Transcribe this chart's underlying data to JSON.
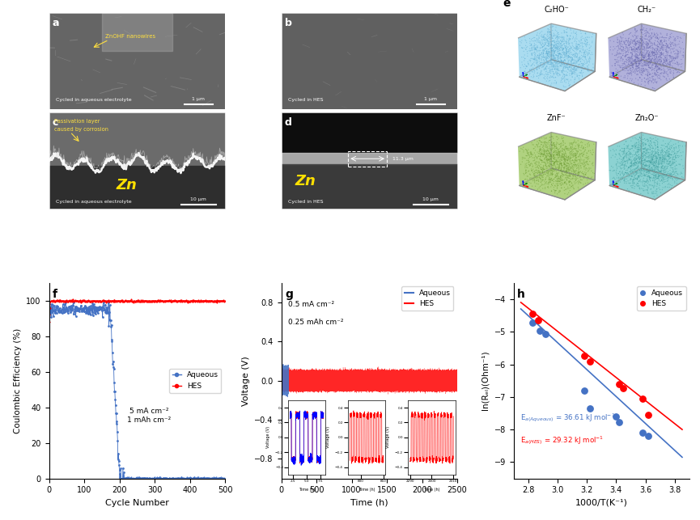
{
  "fig_width": 8.65,
  "fig_height": 6.43,
  "panel_f": {
    "xlabel": "Cycle Number",
    "ylabel": "Coulombic Efficiency (%)",
    "xlim": [
      0,
      500
    ],
    "ylim": [
      0,
      110
    ],
    "xticks": [
      0,
      100,
      200,
      300,
      400,
      500
    ],
    "yticks": [
      0,
      20,
      40,
      60,
      80,
      100
    ],
    "legend": [
      "Aqueous",
      "HES"
    ],
    "aqueous_color": "#4472C4",
    "hes_color": "#FF0000",
    "annotation": "5 mA cm⁻²\n1 mAh cm⁻²"
  },
  "panel_g": {
    "xlabel": "Time (h)",
    "ylabel": "Voltage (V)",
    "xlim": [
      0,
      2500
    ],
    "ylim": [
      -1.0,
      1.0
    ],
    "xticks": [
      0,
      500,
      1000,
      1500,
      2000,
      2500
    ],
    "yticks": [
      -0.8,
      -0.4,
      0.0,
      0.4,
      0.8
    ],
    "legend": [
      "Aqueous",
      "HES"
    ],
    "aqueous_color": "#4472C4",
    "hes_color": "#FF0000",
    "annotation1": "0.5 mA cm⁻²",
    "annotation2": "0.25 mAh cm⁻²"
  },
  "panel_h": {
    "xlabel": "1000/T(K⁻¹)",
    "ylabel": "ln(Rₑₗ)(Ohm⁻¹)",
    "xlim": [
      2.7,
      3.9
    ],
    "ylim": [
      -9.5,
      -3.5
    ],
    "xticks": [
      2.8,
      3.0,
      3.2,
      3.4,
      3.6,
      3.8
    ],
    "yticks": [
      -9,
      -8,
      -7,
      -6,
      -5,
      -4
    ],
    "legend": [
      "Aqueous",
      "HES"
    ],
    "aqueous_color": "#4472C4",
    "hes_color": "#FF0000",
    "aqueous_x": [
      2.83,
      2.88,
      2.92,
      3.18,
      3.22,
      3.4,
      3.42,
      3.58,
      3.62
    ],
    "aqueous_y": [
      -4.72,
      -4.98,
      -5.08,
      -6.8,
      -7.35,
      -7.6,
      -7.78,
      -8.1,
      -8.2
    ],
    "hes_x": [
      2.83,
      2.87,
      3.18,
      3.22,
      3.42,
      3.45,
      3.58,
      3.62
    ],
    "hes_y": [
      -4.45,
      -4.65,
      -5.75,
      -5.92,
      -6.62,
      -6.72,
      -7.05,
      -7.55
    ],
    "aqueous_fit_x": [
      2.75,
      3.85
    ],
    "aqueous_fit_y": [
      -4.3,
      -8.85
    ],
    "hes_fit_x": [
      2.75,
      3.85
    ],
    "hes_fit_y": [
      -4.1,
      -8.0
    ]
  },
  "mol_labels": [
    "C₂HO⁻",
    "CH₂⁻",
    "ZnF⁻",
    "Zn₂O⁻"
  ],
  "mol_colors": [
    "#87CEEB",
    "#9090CC",
    "#8FBF4A",
    "#5BBFBF"
  ],
  "mol_dot_colors": [
    "#5AAAD0",
    "#6060AA",
    "#6A9A30",
    "#3A9A9A"
  ]
}
